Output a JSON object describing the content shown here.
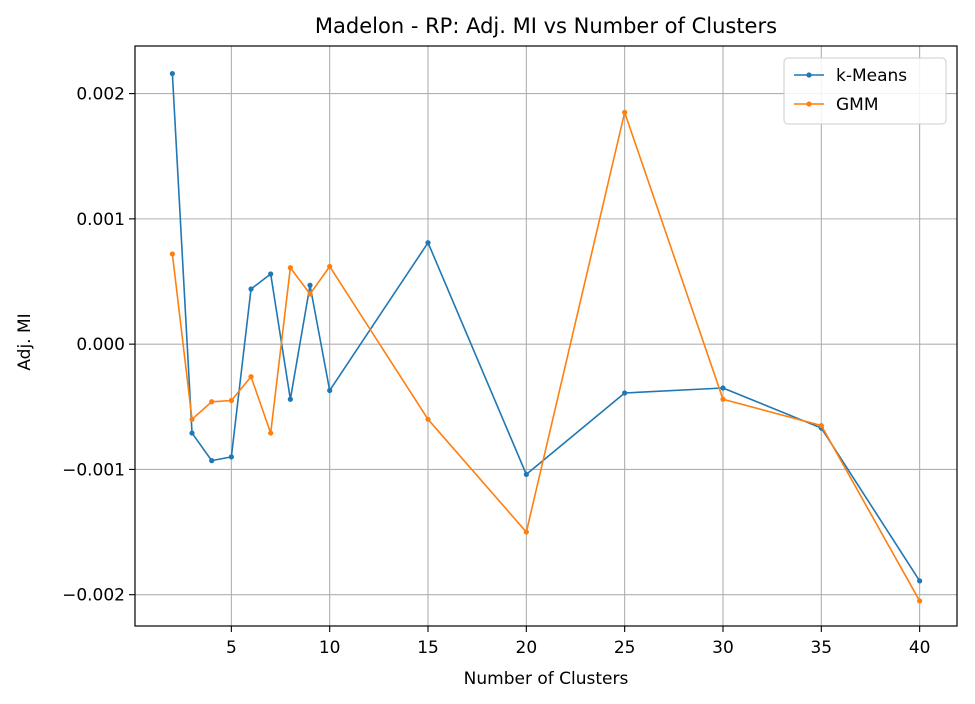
{
  "chart_data": {
    "type": "line",
    "title": "Madelon - RP: Adj. MI vs Number of Clusters",
    "xlabel": "Number of Clusters",
    "ylabel": "Adj. MI",
    "xlim": [
      0.1,
      41.9
    ],
    "ylim": [
      -0.00225,
      0.00238
    ],
    "xticks": [
      5,
      10,
      15,
      20,
      25,
      30,
      35,
      40
    ],
    "yticks": [
      -0.002,
      -0.001,
      0.0,
      0.001,
      0.002
    ],
    "ytick_labels": [
      "−0.002",
      "−0.001",
      "0.000",
      "0.001",
      "0.002"
    ],
    "grid": true,
    "legend_position": "top-right",
    "x": [
      2,
      3,
      4,
      5,
      6,
      7,
      8,
      9,
      10,
      15,
      20,
      25,
      30,
      35,
      40
    ],
    "series": [
      {
        "name": "k-Means",
        "color": "#1f77b4",
        "values": [
          0.00216,
          -0.00071,
          -0.00093,
          -0.0009,
          0.00044,
          0.00056,
          -0.00044,
          0.00047,
          -0.00037,
          0.00081,
          -0.00104,
          -0.00039,
          -0.00035,
          -0.00067,
          -0.00189
        ]
      },
      {
        "name": "GMM",
        "color": "#ff7f0e",
        "values": [
          0.00072,
          -0.0006,
          -0.00046,
          -0.00045,
          -0.00026,
          -0.00071,
          0.00061,
          0.0004,
          0.00062,
          -0.0006,
          -0.0015,
          0.00185,
          -0.00044,
          -0.00065,
          -0.00205
        ]
      }
    ]
  }
}
